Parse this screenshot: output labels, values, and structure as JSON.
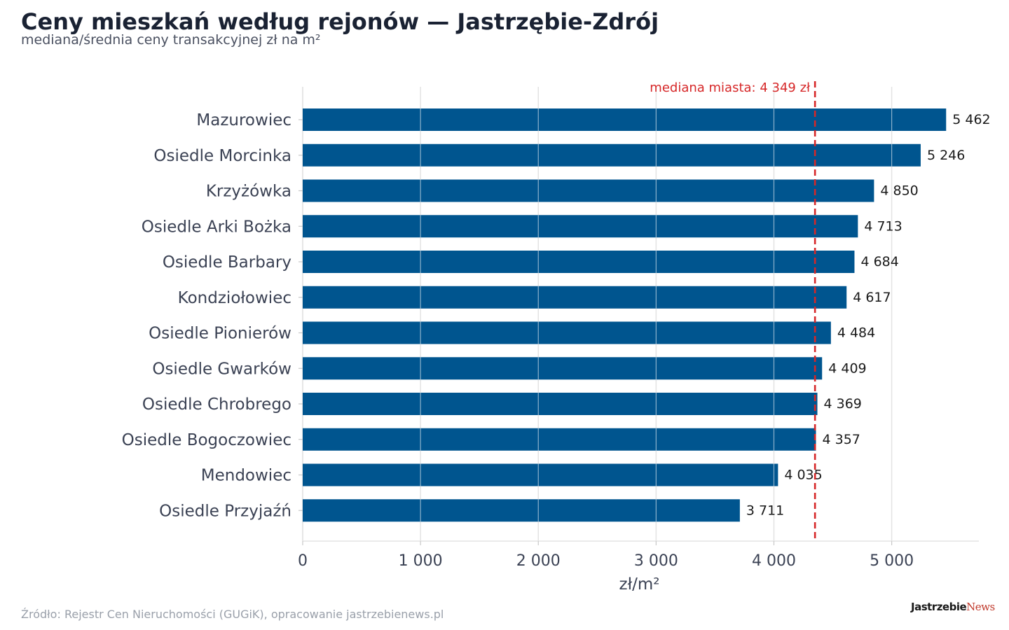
{
  "title": "Ceny mieszkań według rejonów — Jastrzębie-Zdrój",
  "subtitle": "mediana/średnia ceny transakcyjnej zł na m²",
  "source": "Źródło: Rejestr Cen Nieruchomości (GUGiK), opracowanie jastrzebienews.pl",
  "logo": {
    "part1": "Jastrzebie",
    "part2": "News"
  },
  "colors": {
    "bar": "#00558f",
    "reference": "#d62728",
    "grid": "#e3e3e3"
  },
  "chart_data": {
    "type": "bar",
    "orientation": "horizontal",
    "categories": [
      "Mazurowiec",
      "Osiedle Morcinka",
      "Krzyżówka",
      "Osiedle Arki Bożka",
      "Osiedle Barbary",
      "Kondziołowiec",
      "Osiedle Pionierów",
      "Osiedle Gwarków",
      "Osiedle Chrobrego",
      "Osiedle Bogoczowiec",
      "Mendowiec",
      "Osiedle Przyjaźń"
    ],
    "values": [
      5462,
      5246,
      4850,
      4713,
      4684,
      4617,
      4484,
      4409,
      4369,
      4357,
      4035,
      3711
    ],
    "value_labels": [
      "5 462",
      "5 246",
      "4 850",
      "4 713",
      "4 684",
      "4 617",
      "4 484",
      "4 409",
      "4 369",
      "4 357",
      "4 035",
      "3 711"
    ],
    "xlabel": "zł/m²",
    "ylabel": "",
    "xlim": [
      0,
      5740
    ],
    "xticks": [
      0,
      1000,
      2000,
      3000,
      4000,
      5000
    ],
    "xtick_labels": [
      "0",
      "1 000",
      "2 000",
      "3 000",
      "4 000",
      "5 000"
    ],
    "grid": true,
    "reference_line": {
      "value": 4349,
      "label": "mediana miasta: 4 349 zł"
    }
  }
}
